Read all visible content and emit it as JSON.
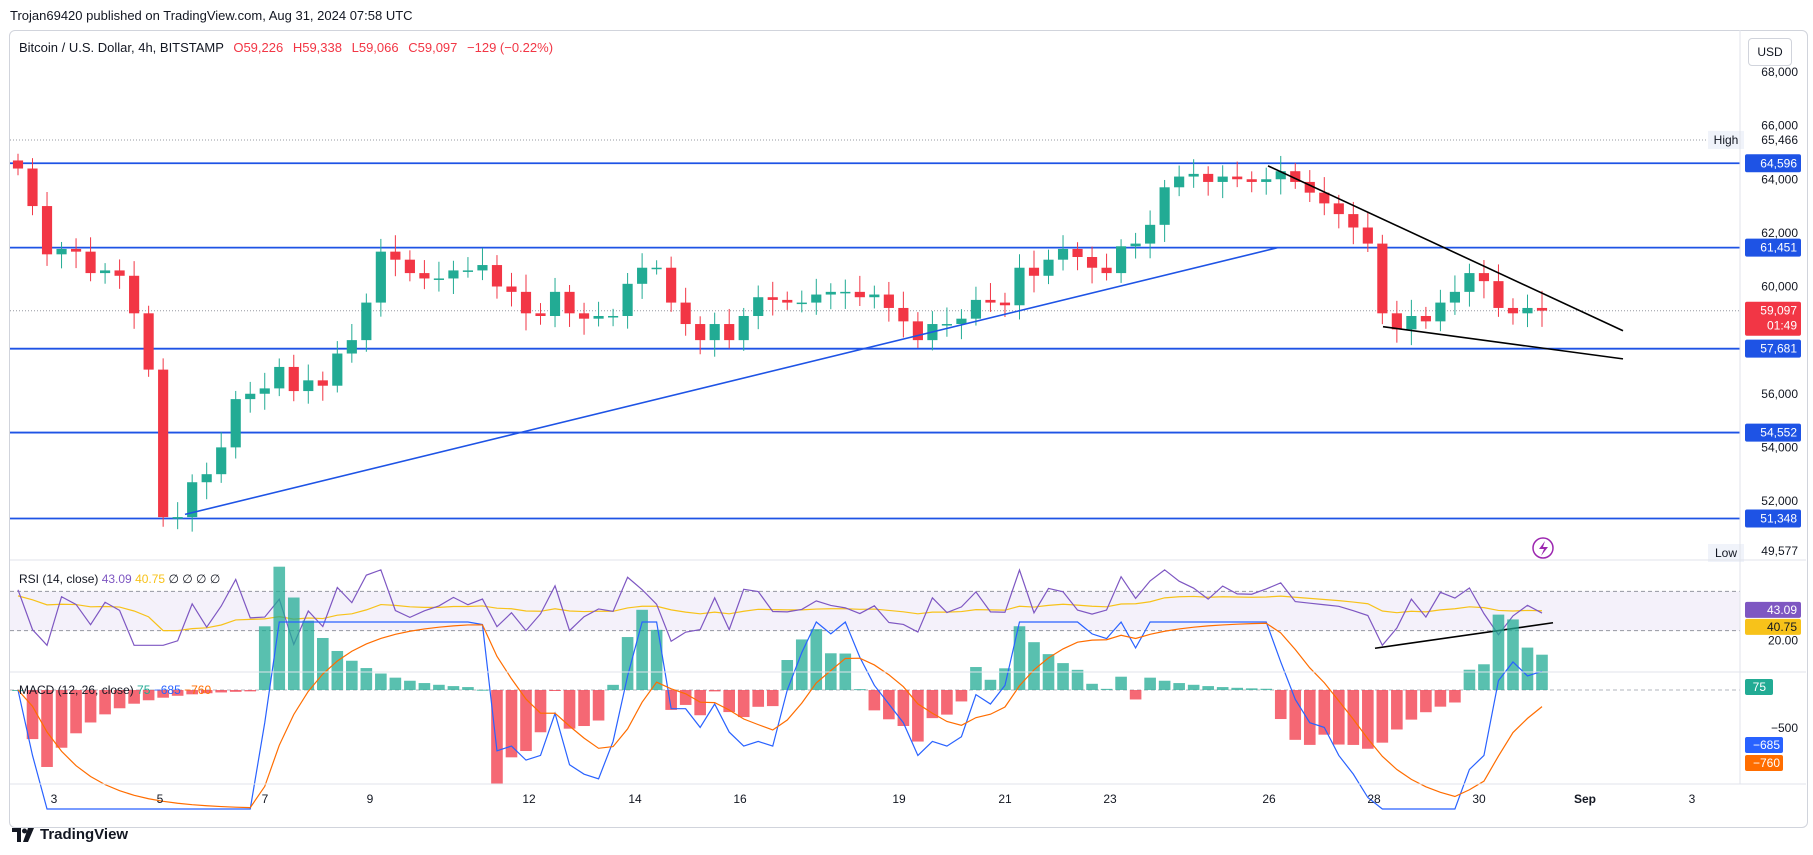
{
  "header": {
    "published": "Trojan69420 published on TradingView.com, Aug 31, 2024 07:58 UTC"
  },
  "legend": {
    "symbol": "Bitcoin / U.S. Dollar, 4h, BITSTAMP",
    "open": "O59,226",
    "high": "H59,338",
    "low": "L59,066",
    "close": "C59,097",
    "change": "−129 (−0.22%)"
  },
  "currency_button": "USD",
  "price_axis": {
    "ticks": [
      "68,000",
      "66,000",
      "64,000",
      "62,000",
      "60,000",
      "56,000",
      "54,000",
      "52,000"
    ],
    "high_label": "High",
    "high_value": "65,466",
    "low_label": "Low",
    "low_value": "49,577",
    "current_price": "59,097",
    "countdown": "01:49",
    "levels": [
      "64,596",
      "61,451",
      "57,681",
      "54,552",
      "51,348"
    ]
  },
  "rsi": {
    "label": "RSI (14, close)",
    "value": "43.09",
    "ma_value": "40.75",
    "zeros": "∅ ∅ ∅ ∅",
    "tick_20": "20.00",
    "badge_rsi": "43.09",
    "badge_ma": "40.75"
  },
  "macd": {
    "label": "MACD (12, 26, close)",
    "hist": "75",
    "macd": "−685",
    "signal": "−760",
    "tick_500": "−500",
    "badge_hist": "75",
    "badge_macd": "−685",
    "badge_signal": "−760"
  },
  "time_axis": [
    "3",
    "5",
    "7",
    "9",
    "12",
    "14",
    "16",
    "19",
    "21",
    "23",
    "26",
    "28",
    "30",
    "Sep",
    "3"
  ],
  "footer": {
    "brand": "TradingView"
  },
  "colors": {
    "up": "#22ab94",
    "down": "#f23645",
    "level_line": "#1e53e5",
    "rsi_line": "#7e57c2",
    "rsi_ma": "#f7c21a",
    "macd_line": "#2962ff",
    "signal_line": "#ff6d00"
  },
  "chart_data": {
    "type": "candlestick",
    "title": "Bitcoin / U.S. Dollar, 4h, BITSTAMP",
    "interval": "4h",
    "yrange": [
      49500,
      68500
    ],
    "horizontal_levels": [
      64596,
      61451,
      57681,
      54552,
      51348
    ],
    "high": 65466,
    "low": 49577,
    "last": 59097,
    "x_labels": [
      "3",
      "5",
      "7",
      "9",
      "12",
      "14",
      "16",
      "19",
      "21",
      "23",
      "26",
      "28",
      "30",
      "Sep",
      "3"
    ],
    "close_path": [
      64400,
      63000,
      61200,
      61400,
      61300,
      60500,
      60600,
      60400,
      59000,
      56900,
      51400,
      51400,
      52700,
      53000,
      54000,
      55800,
      56000,
      56200,
      57000,
      56100,
      56500,
      56300,
      57500,
      58000,
      59400,
      61300,
      61000,
      60500,
      60300,
      60300,
      60600,
      60600,
      60800,
      60000,
      59800,
      59000,
      58900,
      59800,
      59000,
      58800,
      58900,
      58900,
      60100,
      60700,
      60700,
      59400,
      58600,
      58000,
      58600,
      58000,
      58900,
      59600,
      59500,
      59400,
      59400,
      59700,
      59800,
      59800,
      59600,
      59700,
      59200,
      58700,
      58000,
      58600,
      58600,
      58800,
      59500,
      59400,
      59300,
      60700,
      60400,
      61000,
      61400,
      61100,
      60700,
      60500,
      61500,
      61600,
      62300,
      63700,
      64100,
      64200,
      63900,
      64100,
      64000,
      63900,
      64000,
      64300,
      63900,
      63500,
      63100,
      62700,
      62200,
      61600,
      59000,
      58400,
      58900,
      58700,
      59400,
      59800,
      60500,
      60200,
      59200,
      59000,
      59200,
      59100
    ]
  }
}
